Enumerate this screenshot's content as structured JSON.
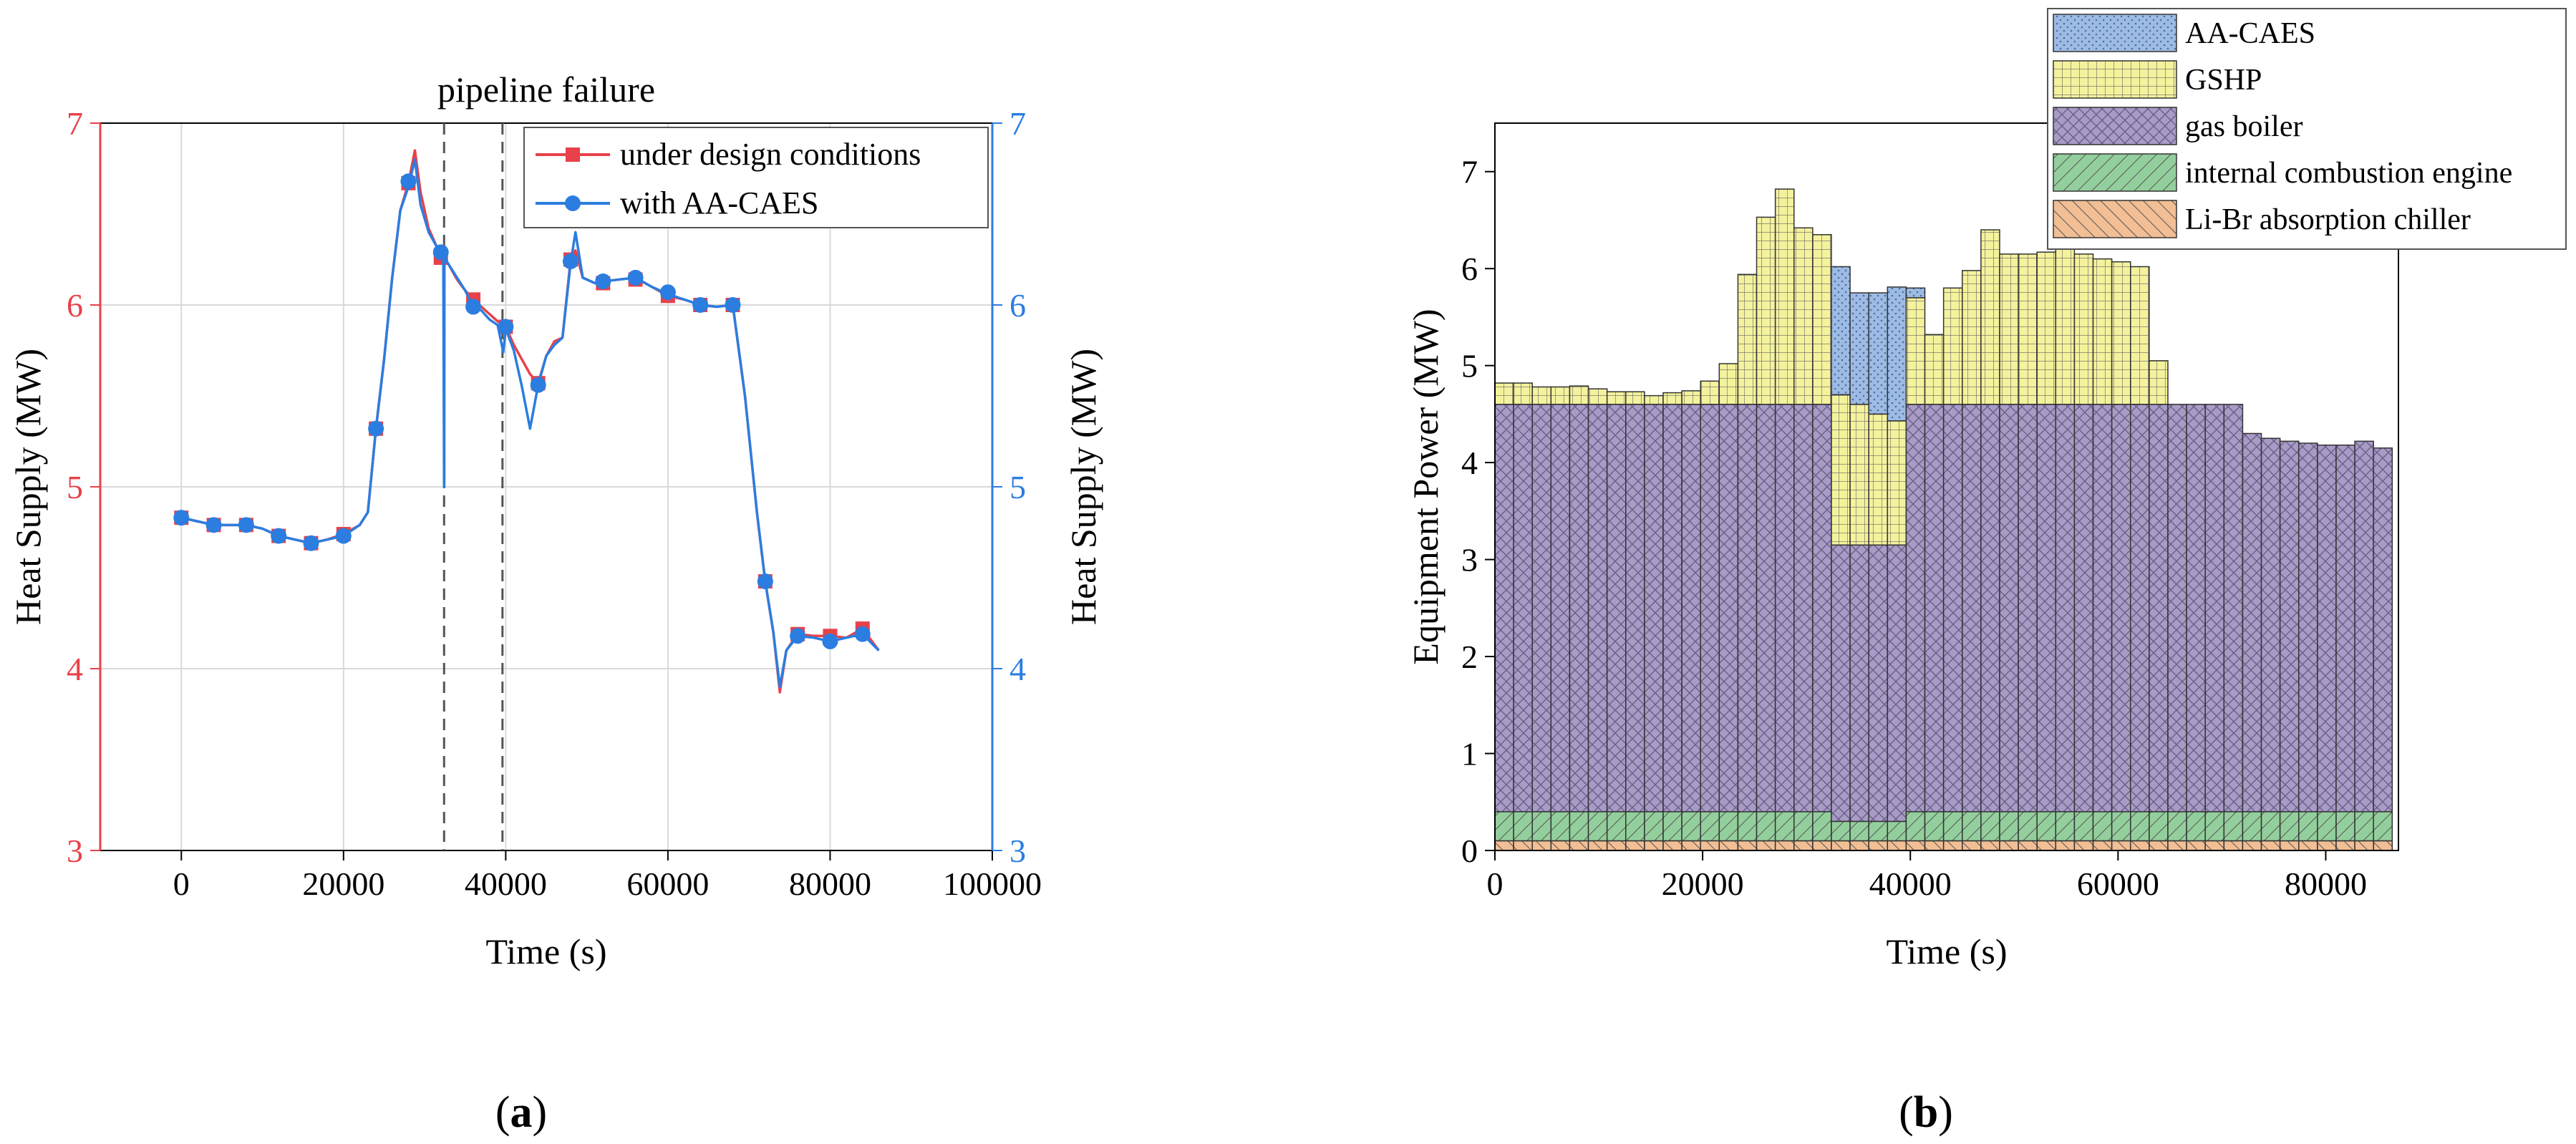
{
  "figure": {
    "panel_a_label": "(a)",
    "panel_b_label": "(b)",
    "panel_letter_a": "a",
    "panel_letter_b": "b"
  },
  "colors": {
    "red": "#e8414a",
    "blue": "#2b7de0",
    "axis": "#000000",
    "grid": "#d9d9d9",
    "aa_caes": "#9dbbe3",
    "gshp": "#f4f29c",
    "gas_boiler": "#a89bc6",
    "ice": "#93cf9c",
    "libr": "#f2be94",
    "bar_edge": "#333333"
  },
  "chart_data": [
    {
      "type": "line",
      "panel": "a",
      "title": "pipeline failure",
      "xlabel": "Time (s)",
      "ylabel_left": "Heat Supply (MW)",
      "ylabel_right": "Heat Supply (MW)",
      "xlim": [
        -10000,
        100000
      ],
      "ylim": [
        3,
        7
      ],
      "xticks": [
        "0",
        "20000",
        "40000",
        "60000",
        "80000",
        "100000"
      ],
      "xtick_values": [
        0,
        20000,
        40000,
        60000,
        80000,
        100000
      ],
      "yticks_left": [
        "3",
        "4",
        "5",
        "6",
        "7"
      ],
      "yticks_right": [
        "3",
        "4",
        "5",
        "6",
        "7"
      ],
      "ytick_values": [
        3,
        4,
        5,
        6,
        7
      ],
      "grid": true,
      "vlines": [
        32400,
        39600
      ],
      "legend": {
        "position": "top-right",
        "entries": [
          "under design conditions",
          "with AA-CAES"
        ]
      },
      "series": [
        {
          "name": "under design conditions",
          "color": "red",
          "marker": "square",
          "x": [
            0,
            2000,
            4000,
            6000,
            8000,
            10000,
            12000,
            14000,
            16000,
            18000,
            20000,
            22000,
            23000,
            24000,
            25000,
            26000,
            27000,
            28000,
            28800,
            29500,
            30500,
            31500,
            32400,
            33000,
            34000,
            35000,
            36000,
            37000,
            38000,
            39000,
            40000,
            41000,
            42000,
            43000,
            44000,
            45000,
            46000,
            47000,
            48000,
            48600,
            49500,
            51000,
            52000,
            54000,
            56000,
            58000,
            60000,
            62000,
            64000,
            66000,
            68000,
            69500,
            71000,
            72000,
            73000,
            73800,
            74600,
            76000,
            78000,
            80000,
            82000,
            84000,
            86000
          ],
          "y": [
            4.83,
            4.81,
            4.79,
            4.79,
            4.79,
            4.77,
            4.73,
            4.71,
            4.69,
            4.71,
            4.74,
            4.79,
            4.86,
            5.32,
            5.7,
            6.15,
            6.52,
            6.67,
            6.85,
            6.62,
            6.42,
            6.32,
            6.26,
            6.22,
            6.14,
            6.08,
            6.03,
            5.99,
            5.95,
            5.91,
            5.88,
            5.78,
            5.7,
            5.62,
            5.57,
            5.72,
            5.8,
            5.82,
            6.25,
            6.3,
            6.15,
            6.12,
            6.13,
            6.14,
            6.15,
            6.1,
            6.05,
            6.03,
            6.0,
            5.99,
            6.0,
            5.5,
            4.85,
            4.48,
            4.2,
            3.87,
            4.1,
            4.19,
            4.18,
            4.18,
            4.17,
            4.22,
            4.1
          ],
          "markers_x": [
            0,
            4000,
            8000,
            12000,
            16000,
            20000,
            24000,
            28000,
            32000,
            36000,
            40000,
            44000,
            48000,
            52000,
            56000,
            60000,
            64000,
            68000,
            72000,
            76000,
            80000,
            84000
          ],
          "markers_y": [
            4.83,
            4.79,
            4.79,
            4.73,
            4.69,
            4.74,
            5.32,
            6.67,
            6.26,
            6.03,
            5.88,
            5.57,
            6.25,
            6.12,
            6.14,
            6.05,
            6.0,
            6.0,
            4.48,
            4.19,
            4.18,
            4.22
          ]
        },
        {
          "name": "with AA-CAES",
          "color": "blue",
          "marker": "circle",
          "x": [
            0,
            2000,
            4000,
            6000,
            8000,
            10000,
            12000,
            14000,
            16000,
            18000,
            20000,
            22000,
            23000,
            24000,
            25000,
            26000,
            27000,
            28000,
            28800,
            29500,
            30500,
            31500,
            32300,
            32400,
            32420,
            32440,
            32600,
            33000,
            34000,
            35000,
            36000,
            37000,
            38000,
            39000,
            39700,
            40000,
            41000,
            42000,
            43000,
            44000,
            45000,
            46000,
            47000,
            48000,
            48600,
            49500,
            51000,
            52000,
            54000,
            56000,
            58000,
            60000,
            62000,
            64000,
            66000,
            68000,
            69500,
            71000,
            72000,
            73000,
            73800,
            74600,
            76000,
            78000,
            80000,
            82000,
            84000,
            86000
          ],
          "y": [
            4.83,
            4.81,
            4.79,
            4.79,
            4.79,
            4.77,
            4.73,
            4.71,
            4.69,
            4.71,
            4.73,
            4.79,
            4.86,
            5.32,
            5.7,
            6.15,
            6.52,
            6.65,
            6.8,
            6.55,
            6.4,
            6.32,
            6.3,
            5.0,
            5.0,
            6.3,
            6.25,
            6.22,
            6.15,
            6.08,
            5.99,
            5.97,
            5.92,
            5.89,
            5.74,
            5.87,
            5.75,
            5.55,
            5.32,
            5.56,
            5.72,
            5.78,
            5.82,
            6.23,
            6.4,
            6.15,
            6.12,
            6.13,
            6.14,
            6.15,
            6.1,
            6.06,
            6.03,
            6.0,
            5.99,
            6.0,
            5.5,
            4.85,
            4.48,
            4.2,
            3.9,
            4.1,
            4.18,
            4.17,
            4.15,
            4.17,
            4.19,
            4.1
          ],
          "markers_x": [
            0,
            4000,
            8000,
            12000,
            16000,
            20000,
            24000,
            28000,
            32000,
            36000,
            40000,
            44000,
            48000,
            52000,
            56000,
            60000,
            64000,
            68000,
            72000,
            76000,
            80000,
            84000
          ],
          "markers_y": [
            4.83,
            4.79,
            4.79,
            4.73,
            4.69,
            4.73,
            5.32,
            6.68,
            6.29,
            5.99,
            5.88,
            5.56,
            6.24,
            6.13,
            6.15,
            6.07,
            6.0,
            6.0,
            4.48,
            4.18,
            4.15,
            4.19
          ]
        }
      ]
    },
    {
      "type": "bar",
      "stacked": true,
      "panel": "b",
      "xlabel": "Time (s)",
      "ylabel": "Equipment Power (MW)",
      "xlim": [
        0,
        87000
      ],
      "ylim": [
        0,
        7.5
      ],
      "xticks": [
        "0",
        "20000",
        "40000",
        "60000",
        "80000"
      ],
      "xtick_values": [
        0,
        20000,
        40000,
        60000,
        80000
      ],
      "yticks": [
        "0",
        "1",
        "2",
        "3",
        "4",
        "5",
        "6",
        "7"
      ],
      "ytick_values": [
        0,
        1,
        2,
        3,
        4,
        5,
        6,
        7
      ],
      "bin_width_s": 1800,
      "legend": {
        "position": "top-right",
        "entries": [
          "AA-CAES",
          "GSHP",
          "gas boiler",
          "internal combustion engine",
          "Li-Br absorption chiller"
        ]
      },
      "series": [
        {
          "name": "Li-Br absorption chiller",
          "color": "libr",
          "hatch": "diag-left",
          "values": [
            0.1,
            0.1,
            0.1,
            0.1,
            0.1,
            0.1,
            0.1,
            0.1,
            0.1,
            0.1,
            0.1,
            0.1,
            0.1,
            0.1,
            0.1,
            0.1,
            0.1,
            0.1,
            0.1,
            0.1,
            0.1,
            0.1,
            0.1,
            0.1,
            0.1,
            0.1,
            0.1,
            0.1,
            0.1,
            0.1,
            0.1,
            0.1,
            0.1,
            0.1,
            0.1,
            0.1,
            0.1,
            0.1,
            0.1,
            0.1,
            0.1,
            0.1,
            0.1,
            0.1,
            0.1,
            0.1,
            0.1,
            0.1
          ]
        },
        {
          "name": "internal combustion engine",
          "color": "ice",
          "hatch": "diag-right",
          "values": [
            0.3,
            0.3,
            0.3,
            0.3,
            0.3,
            0.3,
            0.3,
            0.3,
            0.3,
            0.3,
            0.3,
            0.3,
            0.3,
            0.3,
            0.3,
            0.3,
            0.3,
            0.3,
            0.2,
            0.2,
            0.2,
            0.2,
            0.3,
            0.3,
            0.3,
            0.3,
            0.3,
            0.3,
            0.3,
            0.3,
            0.3,
            0.3,
            0.3,
            0.3,
            0.3,
            0.3,
            0.3,
            0.3,
            0.3,
            0.3,
            0.3,
            0.3,
            0.3,
            0.3,
            0.3,
            0.3,
            0.3,
            0.3
          ]
        },
        {
          "name": "gas boiler",
          "color": "gas_boiler",
          "hatch": "cross",
          "values": [
            4.2,
            4.2,
            4.2,
            4.2,
            4.2,
            4.2,
            4.2,
            4.2,
            4.2,
            4.2,
            4.2,
            4.2,
            4.2,
            4.2,
            4.2,
            4.2,
            4.2,
            4.2,
            2.85,
            2.85,
            2.85,
            2.85,
            4.2,
            4.2,
            4.2,
            4.2,
            4.2,
            4.2,
            4.2,
            4.2,
            4.2,
            4.2,
            4.2,
            4.2,
            4.2,
            4.2,
            4.2,
            4.2,
            4.2,
            4.2,
            3.9,
            3.85,
            3.82,
            3.8,
            3.78,
            3.78,
            3.82,
            3.75
          ]
        },
        {
          "name": "GSHP",
          "color": "gshp",
          "hatch": "grid",
          "values": [
            0.22,
            0.22,
            0.18,
            0.18,
            0.19,
            0.16,
            0.13,
            0.13,
            0.09,
            0.12,
            0.14,
            0.24,
            0.42,
            1.34,
            1.93,
            2.22,
            1.82,
            1.75,
            1.55,
            1.45,
            1.35,
            1.28,
            1.1,
            0.72,
            1.2,
            1.38,
            1.8,
            1.55,
            1.55,
            1.57,
            1.6,
            1.55,
            1.5,
            1.47,
            1.42,
            0.45,
            0,
            0,
            0,
            0,
            0,
            0,
            0,
            0,
            0,
            0,
            0,
            0
          ]
        },
        {
          "name": "AA-CAES",
          "color": "aa_caes",
          "hatch": "dots",
          "values": [
            0,
            0,
            0,
            0,
            0,
            0,
            0,
            0,
            0,
            0,
            0,
            0,
            0,
            0,
            0,
            0,
            0,
            0,
            1.32,
            1.15,
            1.25,
            1.38,
            0.1,
            0,
            0,
            0,
            0,
            0,
            0,
            0,
            0,
            0,
            0,
            0,
            0,
            0,
            0,
            0,
            0,
            0,
            0,
            0,
            0,
            0,
            0,
            0,
            0,
            0
          ]
        }
      ]
    }
  ]
}
